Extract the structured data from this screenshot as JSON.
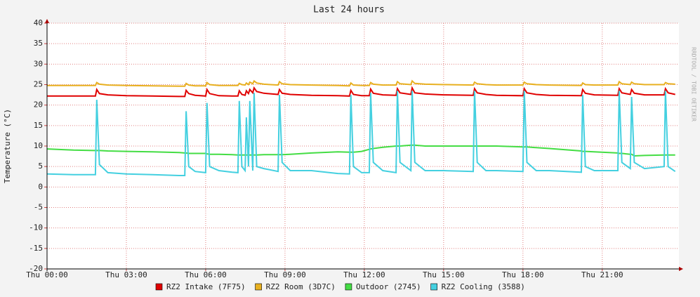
{
  "chart_data": {
    "type": "line",
    "title": "Last 24 hours",
    "y_label": "Temperature (°C)",
    "watermark": "RRDTOOL / TOBI OETIKER",
    "x": [
      0,
      1,
      1.83,
      1.88,
      1.98,
      2.3,
      3,
      4,
      5,
      5.21,
      5.26,
      5.36,
      5.6,
      6.0,
      6.05,
      6.15,
      6.5,
      7.0,
      7.22,
      7.27,
      7.37,
      7.49,
      7.54,
      7.62,
      7.67,
      7.78,
      7.83,
      7.93,
      8.2,
      8.74,
      8.79,
      8.89,
      9.2,
      10,
      11,
      11.44,
      11.49,
      11.59,
      11.9,
      12.19,
      12.24,
      12.34,
      12.7,
      13.2,
      13.25,
      13.35,
      13.76,
      13.81,
      13.91,
      14.3,
      15,
      16.12,
      16.17,
      16.27,
      16.6,
      17,
      18.0,
      18.05,
      18.15,
      18.5,
      19,
      20.21,
      20.26,
      20.36,
      20.7,
      21.59,
      21.64,
      21.74,
      22.06,
      22.11,
      22.21,
      22.6,
      23.34,
      23.39,
      23.49,
      23.76
    ],
    "series": [
      {
        "name": "RZ2 Intake (7F75)",
        "color": "#e00000",
        "values": [
          22.2,
          22.2,
          22.2,
          23.8,
          22.8,
          22.5,
          22.3,
          22.2,
          22.1,
          22.1,
          23.6,
          22.8,
          22.4,
          22.2,
          23.8,
          22.8,
          22.3,
          22.2,
          22.2,
          23.5,
          22.6,
          22.4,
          23.5,
          22.8,
          23.8,
          23,
          24.2,
          23.3,
          22.9,
          22.6,
          23.8,
          22.9,
          22.6,
          22.4,
          22.3,
          22.2,
          23.6,
          22.6,
          22.3,
          22.3,
          23.9,
          22.9,
          22.5,
          22.4,
          24,
          23,
          22.6,
          24.2,
          23,
          22.7,
          22.5,
          22.4,
          24,
          23,
          22.6,
          22.4,
          22.3,
          24,
          23,
          22.6,
          22.4,
          22.3,
          23.8,
          22.9,
          22.5,
          22.4,
          24,
          23,
          22.6,
          23.8,
          22.9,
          22.5,
          22.5,
          24,
          23,
          22.6
        ]
      },
      {
        "name": "RZ2 Room (3D7C)",
        "color": "#e8b020",
        "values": [
          24.8,
          24.8,
          24.8,
          25.5,
          25.1,
          24.9,
          24.8,
          24.7,
          24.6,
          24.6,
          25.3,
          24.9,
          24.7,
          24.7,
          25.5,
          25,
          24.8,
          24.8,
          24.8,
          25.3,
          25,
          24.9,
          25.4,
          25,
          25.6,
          25.2,
          25.9,
          25.4,
          25.1,
          24.9,
          25.7,
          25.2,
          25,
          24.9,
          24.8,
          24.7,
          25.4,
          24.9,
          24.8,
          24.8,
          25.5,
          25.1,
          24.9,
          24.9,
          25.7,
          25.2,
          25,
          25.9,
          25.3,
          25.1,
          25,
          24.9,
          25.6,
          25.2,
          25,
          24.9,
          24.9,
          25.6,
          25.2,
          25,
          24.9,
          24.8,
          25.4,
          25,
          24.9,
          24.9,
          25.7,
          25.2,
          25,
          25.6,
          25.2,
          25,
          25,
          25.5,
          25.2,
          25.1
        ]
      },
      {
        "name": "Outdoor (2745)",
        "color": "#44dd44",
        "values": [
          9.3,
          9.0,
          8.9,
          8.9,
          8.9,
          8.8,
          8.7,
          8.6,
          8.4,
          8.3,
          8.3,
          8.2,
          8.2,
          8.2,
          8.1,
          8.0,
          8.0,
          7.9,
          7.8,
          7.8,
          7.8,
          7.8,
          7.8,
          7.8,
          7.8,
          7.8,
          7.8,
          7.8,
          7.9,
          7.9,
          7.9,
          7.9,
          8.0,
          8.3,
          8.6,
          8.5,
          8.5,
          8.5,
          8.7,
          9.2,
          9.3,
          9.4,
          9.7,
          10,
          10,
          10,
          10.2,
          10.2,
          10.2,
          10,
          10,
          10,
          10,
          10,
          10,
          10,
          9.8,
          9.8,
          9.8,
          9.6,
          9.4,
          8.8,
          8.7,
          8.7,
          8.6,
          8.3,
          8.2,
          8.2,
          8.0,
          8.0,
          7.6,
          7.7,
          7.8,
          7.8,
          7.8,
          7.8
        ]
      },
      {
        "name": "RZ2 Cooling (3588)",
        "color": "#44d0e0",
        "values": [
          3.2,
          3.0,
          3.0,
          21.3,
          5.5,
          3.5,
          3.2,
          3.0,
          2.8,
          2.8,
          18.5,
          5,
          3.8,
          3.5,
          20.5,
          5,
          4,
          3.6,
          3.5,
          21,
          5,
          4,
          17,
          5,
          21,
          4,
          23,
          5,
          4.5,
          3.8,
          22.5,
          6,
          4,
          4,
          3.3,
          3.2,
          22.5,
          5,
          3.5,
          3.5,
          23,
          6,
          4,
          3.5,
          23.5,
          6,
          4,
          23.5,
          6,
          4,
          4,
          3.8,
          23.5,
          6,
          4,
          4,
          3.8,
          23.5,
          6,
          4,
          4,
          3.6,
          22.5,
          5,
          4,
          4,
          23.5,
          6,
          4.5,
          22,
          6,
          4.5,
          5,
          23.5,
          5,
          3.8
        ]
      }
    ],
    "xlim": [
      0,
      23.9
    ],
    "ylim": [
      -20,
      40
    ],
    "xticks": [
      {
        "value": 0,
        "label": "Thu 00:00"
      },
      {
        "value": 3,
        "label": "Thu 03:00"
      },
      {
        "value": 6,
        "label": "Thu 06:00"
      },
      {
        "value": 9,
        "label": "Thu 09:00"
      },
      {
        "value": 12,
        "label": "Thu 12:00"
      },
      {
        "value": 15,
        "label": "Thu 15:00"
      },
      {
        "value": 18,
        "label": "Thu 18:00"
      },
      {
        "value": 21,
        "label": "Thu 21:00"
      }
    ],
    "yticks": [
      -20,
      -15,
      -10,
      -5,
      0,
      5,
      10,
      15,
      20,
      25,
      30,
      35,
      40
    ],
    "grid": true
  }
}
